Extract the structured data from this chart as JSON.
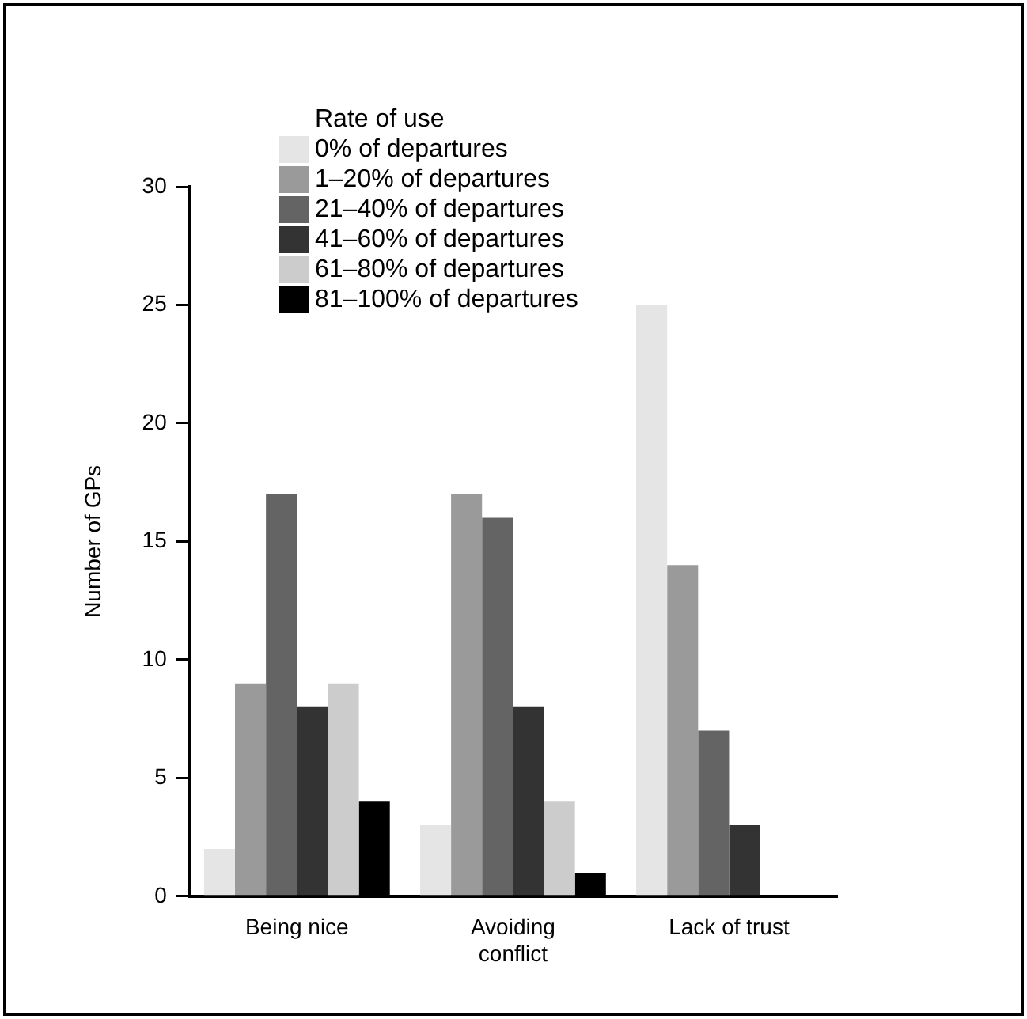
{
  "chart_data": {
    "type": "bar",
    "ylabel": "Number of GPs",
    "legend_title": "Rate of use",
    "legend": "top left",
    "grid": false,
    "categories": [
      "Being nice",
      "Avoiding\nconflict",
      "Lack of trust"
    ],
    "ylim": [
      0,
      30
    ],
    "yticks": [
      0,
      5,
      10,
      15,
      20,
      25,
      30
    ],
    "series": [
      {
        "name": "0%  of departures",
        "color": "#e5e5e5",
        "values": [
          2,
          3,
          25
        ]
      },
      {
        "name": "1–20% of departures",
        "color": "#9a9a9a",
        "values": [
          9,
          17,
          14
        ]
      },
      {
        "name": "21–40% of departures",
        "color": "#646464",
        "values": [
          17,
          16,
          7
        ]
      },
      {
        "name": "41–60% of departures",
        "color": "#333333",
        "values": [
          8,
          8,
          3
        ]
      },
      {
        "name": "61–80% of departures",
        "color": "#cccccc",
        "values": [
          9,
          4,
          0
        ]
      },
      {
        "name": "81–100% of departures",
        "color": "#000000",
        "values": [
          4,
          1,
          0
        ]
      }
    ]
  }
}
